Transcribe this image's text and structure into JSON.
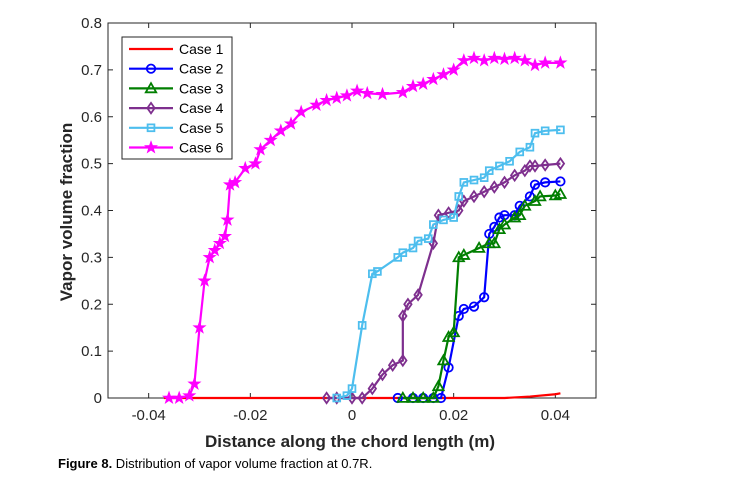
{
  "figure": {
    "label": "Figure 8.",
    "text": " Distribution of vapor volume fraction at 0.7R."
  },
  "chart_data": {
    "type": "line",
    "title": "",
    "xlabel": "Distance along the chord length (m)",
    "ylabel": "Vapor volume fraction",
    "xlim": [
      -0.048,
      0.048
    ],
    "ylim": [
      0,
      0.8
    ],
    "xticks": [
      -0.04,
      -0.02,
      0,
      0.02,
      0.04
    ],
    "xtick_labels": [
      "-0.04",
      "-0.02",
      "0",
      "0.02",
      "0.04"
    ],
    "yticks": [
      0,
      0.1,
      0.2,
      0.3,
      0.4,
      0.5,
      0.6,
      0.7,
      0.8
    ],
    "ytick_labels": [
      "0",
      "0.1",
      "0.2",
      "0.3",
      "0.4",
      "0.5",
      "0.6",
      "0.7",
      "0.8"
    ],
    "legend_position": "top-left",
    "series": [
      {
        "name": "Case 1",
        "color": "#ff0000",
        "marker": "none",
        "points": [
          [
            -0.037,
            0
          ],
          [
            -0.03,
            0
          ],
          [
            -0.02,
            0
          ],
          [
            -0.01,
            0
          ],
          [
            0,
            0
          ],
          [
            0.01,
            0
          ],
          [
            0.02,
            0
          ],
          [
            0.03,
            0
          ],
          [
            0.035,
            0.003
          ],
          [
            0.04,
            0.008
          ],
          [
            0.041,
            0.01
          ]
        ]
      },
      {
        "name": "Case 2",
        "color": "#0000ff",
        "marker": "circle",
        "points": [
          [
            0.009,
            0
          ],
          [
            0.012,
            0
          ],
          [
            0.014,
            0
          ],
          [
            0.016,
            0
          ],
          [
            0.0175,
            0
          ],
          [
            0.019,
            0.065
          ],
          [
            0.021,
            0.175
          ],
          [
            0.022,
            0.19
          ],
          [
            0.024,
            0.195
          ],
          [
            0.026,
            0.215
          ],
          [
            0.027,
            0.35
          ],
          [
            0.028,
            0.365
          ],
          [
            0.029,
            0.385
          ],
          [
            0.03,
            0.39
          ],
          [
            0.032,
            0.39
          ],
          [
            0.033,
            0.41
          ],
          [
            0.035,
            0.43
          ],
          [
            0.036,
            0.455
          ],
          [
            0.038,
            0.46
          ],
          [
            0.041,
            0.462
          ]
        ]
      },
      {
        "name": "Case 3",
        "color": "#007f00",
        "marker": "triangle",
        "points": [
          [
            0.01,
            0
          ],
          [
            0.012,
            0
          ],
          [
            0.014,
            0
          ],
          [
            0.016,
            0
          ],
          [
            0.017,
            0.025
          ],
          [
            0.018,
            0.08
          ],
          [
            0.019,
            0.13
          ],
          [
            0.02,
            0.14
          ],
          [
            0.021,
            0.3
          ],
          [
            0.022,
            0.305
          ],
          [
            0.025,
            0.32
          ],
          [
            0.027,
            0.33
          ],
          [
            0.028,
            0.33
          ],
          [
            0.029,
            0.36
          ],
          [
            0.03,
            0.37
          ],
          [
            0.032,
            0.385
          ],
          [
            0.033,
            0.39
          ],
          [
            0.034,
            0.41
          ],
          [
            0.036,
            0.42
          ],
          [
            0.037,
            0.43
          ],
          [
            0.04,
            0.432
          ],
          [
            0.041,
            0.435
          ]
        ]
      },
      {
        "name": "Case 4",
        "color": "#7e2f8e",
        "marker": "diamond",
        "points": [
          [
            -0.005,
            0
          ],
          [
            -0.003,
            0
          ],
          [
            0,
            0
          ],
          [
            0.002,
            0
          ],
          [
            0.004,
            0.02
          ],
          [
            0.006,
            0.05
          ],
          [
            0.008,
            0.07
          ],
          [
            0.01,
            0.08
          ],
          [
            0.01,
            0.175
          ],
          [
            0.011,
            0.2
          ],
          [
            0.013,
            0.22
          ],
          [
            0.016,
            0.33
          ],
          [
            0.017,
            0.39
          ],
          [
            0.019,
            0.395
          ],
          [
            0.021,
            0.4
          ],
          [
            0.022,
            0.42
          ],
          [
            0.024,
            0.43
          ],
          [
            0.026,
            0.44
          ],
          [
            0.028,
            0.45
          ],
          [
            0.03,
            0.46
          ],
          [
            0.032,
            0.475
          ],
          [
            0.034,
            0.485
          ],
          [
            0.035,
            0.495
          ],
          [
            0.036,
            0.495
          ],
          [
            0.038,
            0.497
          ],
          [
            0.041,
            0.5
          ]
        ]
      },
      {
        "name": "Case 5",
        "color": "#4dbeee",
        "marker": "square",
        "points": [
          [
            -0.003,
            0
          ],
          [
            -0.001,
            0.005
          ],
          [
            0,
            0.02
          ],
          [
            0.002,
            0.155
          ],
          [
            0.004,
            0.265
          ],
          [
            0.005,
            0.27
          ],
          [
            0.009,
            0.3
          ],
          [
            0.01,
            0.31
          ],
          [
            0.012,
            0.32
          ],
          [
            0.013,
            0.335
          ],
          [
            0.015,
            0.34
          ],
          [
            0.016,
            0.37
          ],
          [
            0.018,
            0.38
          ],
          [
            0.02,
            0.385
          ],
          [
            0.021,
            0.43
          ],
          [
            0.022,
            0.46
          ],
          [
            0.024,
            0.465
          ],
          [
            0.026,
            0.47
          ],
          [
            0.027,
            0.485
          ],
          [
            0.029,
            0.495
          ],
          [
            0.031,
            0.505
          ],
          [
            0.033,
            0.525
          ],
          [
            0.035,
            0.535
          ],
          [
            0.036,
            0.565
          ],
          [
            0.038,
            0.57
          ],
          [
            0.041,
            0.572
          ]
        ]
      },
      {
        "name": "Case 6",
        "color": "#ff00ff",
        "marker": "star",
        "points": [
          [
            -0.036,
            0
          ],
          [
            -0.034,
            0
          ],
          [
            -0.032,
            0.005
          ],
          [
            -0.031,
            0.03
          ],
          [
            -0.03,
            0.15
          ],
          [
            -0.029,
            0.25
          ],
          [
            -0.028,
            0.3
          ],
          [
            -0.027,
            0.315
          ],
          [
            -0.026,
            0.33
          ],
          [
            -0.025,
            0.345
          ],
          [
            -0.0245,
            0.38
          ],
          [
            -0.024,
            0.455
          ],
          [
            -0.023,
            0.46
          ],
          [
            -0.021,
            0.49
          ],
          [
            -0.019,
            0.5
          ],
          [
            -0.018,
            0.53
          ],
          [
            -0.016,
            0.55
          ],
          [
            -0.014,
            0.57
          ],
          [
            -0.012,
            0.585
          ],
          [
            -0.01,
            0.61
          ],
          [
            -0.007,
            0.625
          ],
          [
            -0.005,
            0.635
          ],
          [
            -0.003,
            0.64
          ],
          [
            -0.001,
            0.645
          ],
          [
            0.001,
            0.655
          ],
          [
            0.003,
            0.65
          ],
          [
            0.006,
            0.648
          ],
          [
            0.01,
            0.652
          ],
          [
            0.012,
            0.665
          ],
          [
            0.014,
            0.67
          ],
          [
            0.016,
            0.68
          ],
          [
            0.018,
            0.69
          ],
          [
            0.02,
            0.7
          ],
          [
            0.022,
            0.72
          ],
          [
            0.024,
            0.725
          ],
          [
            0.026,
            0.72
          ],
          [
            0.028,
            0.725
          ],
          [
            0.03,
            0.723
          ],
          [
            0.032,
            0.725
          ],
          [
            0.034,
            0.72
          ],
          [
            0.036,
            0.71
          ],
          [
            0.038,
            0.715
          ],
          [
            0.041,
            0.715
          ]
        ]
      }
    ]
  }
}
